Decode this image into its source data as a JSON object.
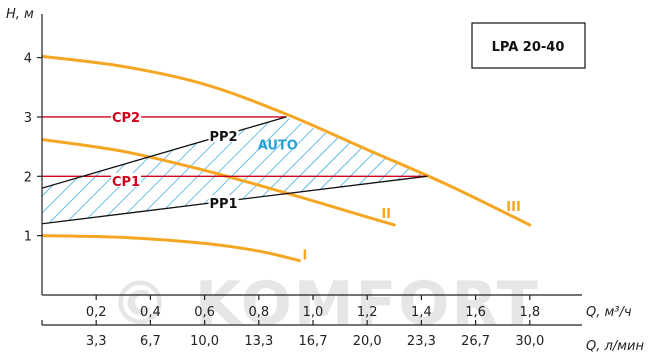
{
  "chart_data": {
    "type": "line",
    "model_badge": "LPA 20-40",
    "watermark": "© KOMFORT",
    "y_axis": {
      "label": "H, м",
      "range": [
        0,
        4.6
      ],
      "ticks": [
        1,
        2,
        3,
        4
      ],
      "tick_labels": [
        "1",
        "2",
        "3",
        "4"
      ]
    },
    "x_axis_m3h": {
      "label": "Q, м³/ч",
      "range": [
        0,
        2.0
      ],
      "ticks": [
        0.2,
        0.4,
        0.6,
        0.8,
        1.0,
        1.2,
        1.4,
        1.6,
        1.8
      ],
      "tick_labels": [
        "0,2",
        "0,4",
        "0,6",
        "0,8",
        "1,0",
        "1,2",
        "1,4",
        "1,6",
        "1,8"
      ]
    },
    "x_axis_lmin": {
      "label": "Q, л/мин",
      "ticks_m3h": [
        0.2,
        0.4,
        0.6,
        0.8,
        1.0,
        1.2,
        1.4,
        1.6,
        1.8
      ],
      "tick_labels": [
        "3,3",
        "6,7",
        "10,0",
        "13,3",
        "16,7",
        "20,0",
        "23,3",
        "26,7",
        "30,0"
      ]
    },
    "colors": {
      "curve": "#f5a623",
      "cp": "#d0021b",
      "pp": "#111111",
      "auto_hatch": "#29a3d6",
      "axis": "#222222"
    },
    "series": [
      {
        "name": "I",
        "kind": "speed",
        "points": [
          [
            0,
            1.0
          ],
          [
            0.3,
            0.97
          ],
          [
            0.6,
            0.87
          ],
          [
            0.8,
            0.74
          ],
          [
            0.95,
            0.58
          ]
        ],
        "label_at": [
          0.97,
          0.68
        ]
      },
      {
        "name": "II",
        "kind": "speed",
        "points": [
          [
            0,
            2.62
          ],
          [
            0.3,
            2.42
          ],
          [
            0.6,
            2.1
          ],
          [
            0.9,
            1.72
          ],
          [
            1.1,
            1.45
          ],
          [
            1.3,
            1.18
          ]
        ],
        "label_at": [
          1.27,
          1.38
        ]
      },
      {
        "name": "III",
        "kind": "speed",
        "points": [
          [
            0,
            4.02
          ],
          [
            0.3,
            3.85
          ],
          [
            0.6,
            3.55
          ],
          [
            0.9,
            3.05
          ],
          [
            1.2,
            2.45
          ],
          [
            1.5,
            1.85
          ],
          [
            1.8,
            1.18
          ]
        ],
        "label_at": [
          1.74,
          1.5
        ]
      },
      {
        "name": "CP2",
        "kind": "cp",
        "points": [
          [
            0,
            3.0
          ],
          [
            0.9,
            3.0
          ]
        ],
        "label_at": [
          0.31,
          3.0
        ]
      },
      {
        "name": "CP1",
        "kind": "cp",
        "points": [
          [
            0,
            2.0
          ],
          [
            1.42,
            2.0
          ]
        ],
        "label_at": [
          0.31,
          1.92
        ]
      },
      {
        "name": "PP2",
        "kind": "pp",
        "points": [
          [
            0,
            1.8
          ],
          [
            0.9,
            3.0
          ]
        ],
        "label_at": [
          0.67,
          2.68
        ]
      },
      {
        "name": "PP1",
        "kind": "pp",
        "points": [
          [
            0,
            1.2
          ],
          [
            1.42,
            2.0
          ]
        ],
        "label_at": [
          0.67,
          1.55
        ]
      }
    ],
    "auto_region": {
      "name": "AUTO",
      "label_at": [
        0.87,
        2.45
      ],
      "polygon": [
        [
          0,
          1.8
        ],
        [
          0.9,
          3.0
        ],
        [
          1.2,
          2.45
        ],
        [
          1.42,
          2.0
        ],
        [
          0,
          1.2
        ]
      ]
    }
  }
}
